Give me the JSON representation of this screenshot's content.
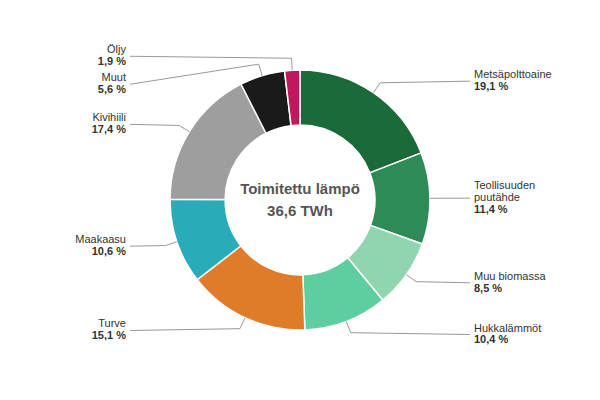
{
  "chart_data": {
    "type": "donut",
    "title": "Toimitettu lämpö",
    "subtitle": "36,6 TWh",
    "categories": [
      "Metsäpolttoaine",
      "Teollisuuden\npuutähde",
      "Muu biomassa",
      "Hukkalämmöt",
      "Turve",
      "Maakaasu",
      "Kivihiili",
      "Muut",
      "Öljy"
    ],
    "values": [
      19.1,
      11.4,
      8.5,
      10.4,
      15.1,
      10.6,
      17.4,
      5.6,
      1.9
    ],
    "value_labels": [
      "19,1 %",
      "11,4 %",
      "8,5 %",
      "10,4 %",
      "15,1 %",
      "10,6 %",
      "17,4 %",
      "5,6 %",
      "1,9 %"
    ],
    "colors": [
      "#1b6b3a",
      "#2e8b57",
      "#90d4b0",
      "#5ecda0",
      "#e07b2a",
      "#2aacb8",
      "#9e9e9e",
      "#1a1a1a",
      "#c0185e"
    ],
    "data_labels": true
  }
}
